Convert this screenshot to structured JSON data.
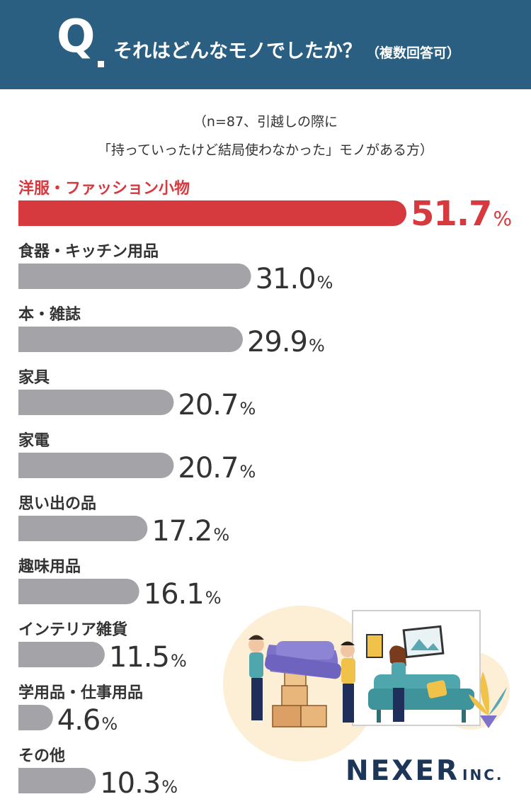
{
  "header": {
    "q_letter": "Q",
    "question": "それはどんなモノでしたか？",
    "question_note": "（複数回答可）"
  },
  "note": {
    "line1": "（n=87、引越しの際に",
    "line2": "「持っていったけど結局使わなかった」モノがある方）"
  },
  "chart_data": {
    "type": "bar",
    "orientation": "horizontal",
    "unit": "%",
    "categories": [
      "洋服・ファッション小物",
      "食器・キッチン用品",
      "本・雑誌",
      "家具",
      "家電",
      "思い出の品",
      "趣味用品",
      "インテリア雑貨",
      "学用品・仕事用品",
      "その他"
    ],
    "values": [
      51.7,
      31.0,
      29.9,
      20.7,
      20.7,
      17.2,
      16.1,
      11.5,
      4.6,
      10.3
    ],
    "value_labels": [
      "51.7",
      "31.0",
      "29.9",
      "20.7",
      "20.7",
      "17.2",
      "16.1",
      "11.5",
      "4.6",
      "10.3"
    ],
    "highlight_index": 0,
    "colors": {
      "highlight": "#d63a3f",
      "default": "#a3a3a8",
      "label": "#333333",
      "highlight_label": "#d63a3f"
    }
  },
  "colors": {
    "header_bg": "#2b5f82"
  },
  "brand": {
    "name": "NEXER",
    "suffix": "INC."
  }
}
